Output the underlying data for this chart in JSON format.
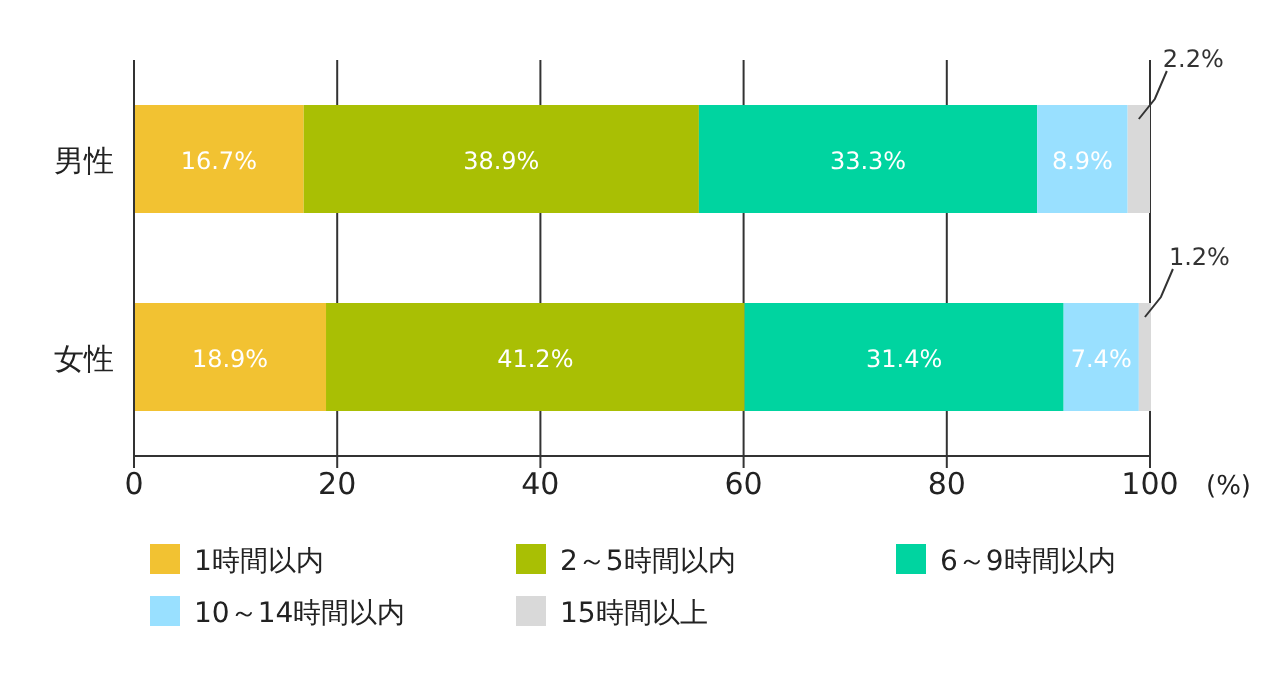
{
  "chart_data": {
    "type": "bar",
    "orientation": "horizontal",
    "stacked": true,
    "categories": [
      "男性",
      "女性"
    ],
    "series": [
      {
        "name": "1時間以内",
        "color": "#f2c232",
        "values": [
          16.7,
          18.9
        ],
        "value_labels": [
          "16.7%",
          "18.9%"
        ]
      },
      {
        "name": "2～5時間以内",
        "color": "#a9bf04",
        "values": [
          38.9,
          41.2
        ],
        "value_labels": [
          "38.9%",
          "41.2%"
        ]
      },
      {
        "name": "6～9時間以内",
        "color": "#00d4a0",
        "values": [
          33.3,
          31.4
        ],
        "value_labels": [
          "33.3%",
          "31.4%"
        ]
      },
      {
        "name": "10～14時間以内",
        "color": "#99e0ff",
        "values": [
          8.9,
          7.4
        ],
        "value_labels": [
          "8.9%",
          "7.4%"
        ]
      },
      {
        "name": "15時間以上",
        "color": "#d9d9d9",
        "values": [
          2.2,
          1.2
        ],
        "value_labels": [
          "2.2%",
          "1.2%"
        ]
      }
    ],
    "xlim": [
      0,
      100
    ],
    "xticks": [
      0,
      20,
      40,
      60,
      80,
      100
    ],
    "xlabel": "(%)",
    "grid": "x",
    "legend": "bottom"
  }
}
